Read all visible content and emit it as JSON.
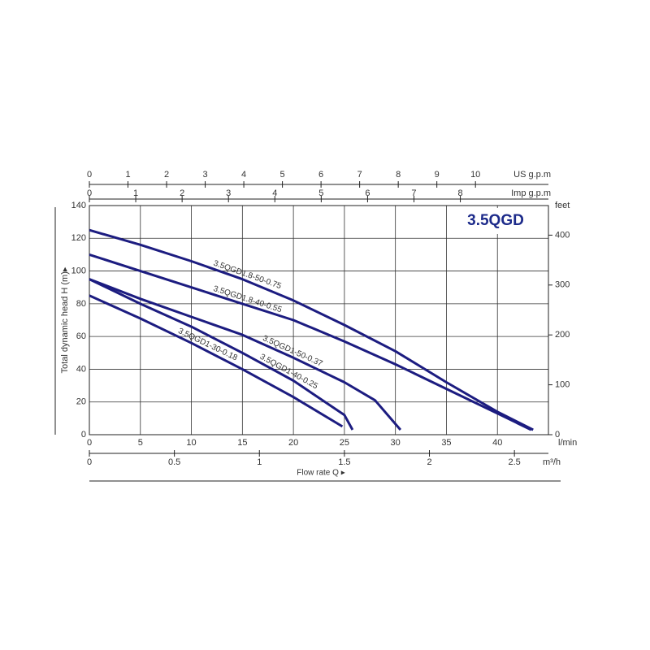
{
  "chart_data": {
    "type": "line",
    "title": "3.5QGD",
    "x_label": "l/min",
    "flow_label": "Flow rate Q ▸",
    "y_label": "Total dynamic head H (m)▸",
    "xlim": [
      0,
      45
    ],
    "xticks": [
      0,
      5,
      10,
      15,
      20,
      25,
      30,
      35,
      40
    ],
    "ylim": [
      0,
      140
    ],
    "yticks": [
      0,
      20,
      40,
      60,
      80,
      100,
      120,
      140
    ],
    "grid": true,
    "y2_label": "feet",
    "y2lim": [
      0,
      459.3
    ],
    "y2ticks": [
      0,
      100,
      200,
      300,
      400
    ],
    "m3h_axis": {
      "label": "m³/h",
      "lim": [
        0,
        2.7
      ],
      "ticks": [
        0,
        0.5,
        1,
        1.5,
        2,
        2.5
      ]
    },
    "usgpm_axis": {
      "label": "US g.p.m",
      "lim": [
        0,
        11.89
      ],
      "ticks": [
        0,
        1,
        2,
        3,
        4,
        5,
        6,
        7,
        8,
        9,
        10
      ]
    },
    "impgpm_axis": {
      "label": "Imp g.p.m",
      "lim": [
        0,
        9.9
      ],
      "ticks": [
        0,
        1,
        2,
        3,
        4,
        5,
        6,
        7,
        8
      ]
    },
    "series": [
      {
        "name": "3.5QGD1.8-50-0.75",
        "color": "#1c1c80",
        "x": [
          0,
          5,
          10,
          15,
          20,
          25,
          30,
          35,
          40,
          43.5
        ],
        "values": [
          125,
          116,
          106,
          95,
          82,
          67,
          51,
          32,
          14,
          3
        ]
      },
      {
        "name": "3.5QGD1.8-40-0.55",
        "color": "#1c1c80",
        "x": [
          0,
          5,
          10,
          15,
          20,
          25,
          30,
          35,
          40,
          43.3
        ],
        "values": [
          110,
          100,
          90,
          80,
          70,
          57,
          43,
          28,
          13,
          3
        ]
      },
      {
        "name": "3.5QGD1-50-0.37",
        "color": "#1c1c80",
        "x": [
          0,
          5,
          10,
          15,
          20,
          25,
          28,
          30.5
        ],
        "values": [
          95,
          83,
          72,
          61,
          47,
          32,
          21,
          3
        ]
      },
      {
        "name": "3.5QGD1-40-0.25",
        "color": "#1c1c80",
        "x": [
          0,
          5,
          10,
          15,
          20,
          25,
          25.8
        ],
        "values": [
          95,
          80,
          66,
          50,
          33,
          12,
          3
        ]
      },
      {
        "name": "3.5QGD1-30-0.18",
        "color": "#1c1c80",
        "x": [
          0,
          5,
          10,
          15,
          20,
          24.8
        ],
        "values": [
          85,
          71,
          56,
          40,
          23,
          5
        ]
      }
    ]
  }
}
